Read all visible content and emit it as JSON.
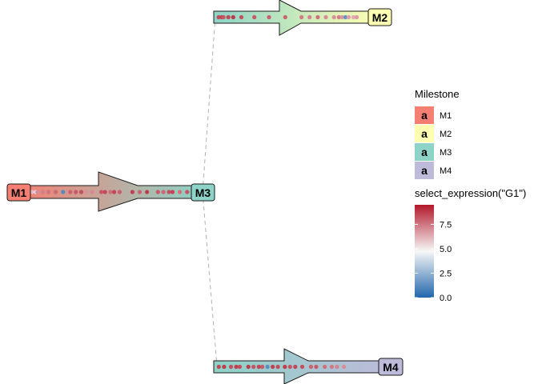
{
  "milestones": [
    {
      "id": "M1",
      "label": "M1",
      "color": "#F47F72"
    },
    {
      "id": "M2",
      "label": "M2",
      "color": "#FFFFB3"
    },
    {
      "id": "M3",
      "label": "M3",
      "color": "#8DD3C7"
    },
    {
      "id": "M4",
      "label": "M4",
      "color": "#BEBADA"
    }
  ],
  "edges": [
    {
      "from": "M1",
      "to": "M3",
      "cells": [
        0.02,
        0.05,
        0.07,
        0.09,
        0.1,
        0.13,
        0.16,
        0.2,
        0.24,
        0.28,
        0.31,
        0.34,
        0.37,
        0.4,
        0.45,
        0.47,
        0.5,
        0.52,
        0.55,
        0.62,
        0.66,
        0.7,
        0.76,
        0.79,
        0.82,
        0.84,
        0.88,
        0.92
      ],
      "values": [
        5.5,
        5.8,
        6.0,
        5.6,
        7.0,
        7.3,
        7.6,
        7.8,
        1.2,
        7.9,
        8.1,
        8.3,
        6.9,
        7.1,
        8.2,
        8.4,
        7.7,
        8.5,
        8.0,
        8.6,
        7.9,
        8.7,
        8.1,
        7.8,
        8.3,
        8.5,
        7.6,
        8.2
      ]
    },
    {
      "from": "M3",
      "to": "M2",
      "cells": [
        0.02,
        0.04,
        0.05,
        0.08,
        0.11,
        0.16,
        0.24,
        0.33,
        0.43,
        0.53,
        0.58,
        0.63,
        0.68,
        0.73,
        0.76,
        0.78,
        0.8,
        0.82,
        0.85,
        0.87
      ],
      "values": [
        8.4,
        8.6,
        8.2,
        8.5,
        8.8,
        8.3,
        8.1,
        8.0,
        7.9,
        7.4,
        7.2,
        7.6,
        7.0,
        6.9,
        7.3,
        6.8,
        1.5,
        6.6,
        6.4,
        6.7
      ]
    },
    {
      "from": "M3",
      "to": "M4",
      "cells": [
        0.02,
        0.05,
        0.09,
        0.12,
        0.14,
        0.19,
        0.22,
        0.25,
        0.27,
        0.3,
        0.33,
        0.36,
        0.4,
        0.43,
        0.46,
        0.5,
        0.55,
        0.58,
        0.63,
        0.67,
        0.7,
        0.74
      ],
      "values": [
        8.5,
        8.7,
        8.3,
        8.6,
        8.4,
        8.8,
        8.2,
        8.5,
        8.1,
        1.3,
        8.6,
        8.4,
        8.7,
        8.2,
        8.5,
        8.3,
        7.9,
        8.1,
        7.6,
        7.4,
        7.2,
        7.0
      ]
    }
  ],
  "legend": {
    "milestone_title": "Milestone",
    "key_glyph": "a",
    "expression_title": "select_expression(\"G1\")",
    "breaks": [
      7.5,
      5.0,
      2.5,
      0.0
    ],
    "break_labels": [
      "7.5",
      "5.0",
      "2.5",
      "0.0"
    ],
    "range": [
      0,
      9.5
    ]
  },
  "colors": {
    "connector": "#B0B0B0",
    "expression_high": "#B2182B",
    "expression_mid": "#F7F7F7",
    "expression_low": "#2166AC"
  }
}
